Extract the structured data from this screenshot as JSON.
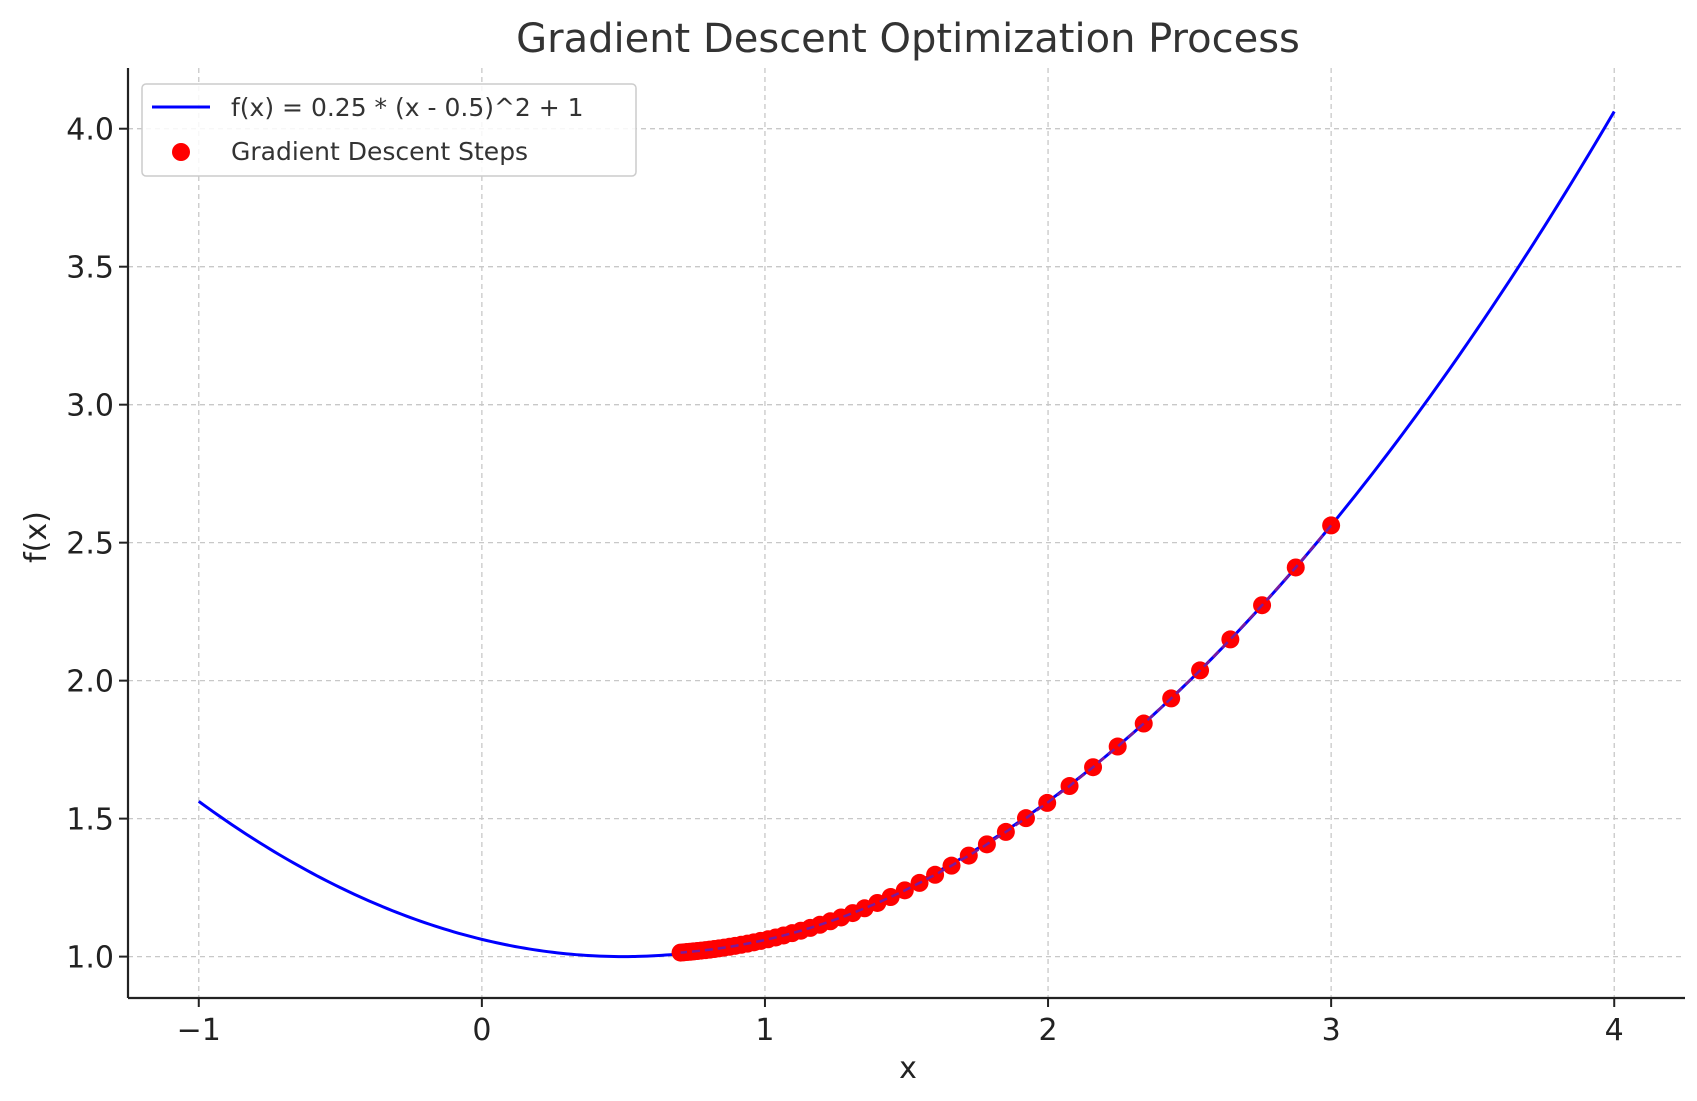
{
  "chart_data": {
    "type": "line",
    "title": "Gradient Descent Optimization Process",
    "xlabel": "x",
    "ylabel": "f(x)",
    "xlim": [
      -1.25,
      4.25
    ],
    "ylim": [
      0.85,
      4.22
    ],
    "x_ticks": [
      -1,
      0,
      1,
      2,
      3,
      4
    ],
    "x_tick_labels": [
      "−1",
      "0",
      "1",
      "2",
      "3",
      "4"
    ],
    "y_ticks": [
      1.0,
      1.5,
      2.0,
      2.5,
      3.0,
      3.5,
      4.0
    ],
    "y_tick_labels": [
      "1.0",
      "1.5",
      "2.0",
      "2.5",
      "3.0",
      "3.5",
      "4.0"
    ],
    "grid": true,
    "legend_position": "top-left",
    "series": [
      {
        "name": "f(x) = 0.25 * (x - 0.5)^2 + 1",
        "kind": "line",
        "color": "#0000ff",
        "function": {
          "a": 0.25,
          "h": 0.5,
          "k": 1
        },
        "x_range": [
          -1,
          4
        ]
      },
      {
        "name": "Gradient Descent Steps",
        "kind": "scatter",
        "color": "#ff0000",
        "x": [
          3.0,
          2.875,
          2.756,
          2.644,
          2.537,
          2.435,
          2.338,
          2.246,
          2.159,
          2.076,
          1.997,
          1.922,
          1.851,
          1.784,
          1.72,
          1.659,
          1.601,
          1.546,
          1.494,
          1.444,
          1.397,
          1.352,
          1.31,
          1.269,
          1.231,
          1.194,
          1.16,
          1.127,
          1.096,
          1.066,
          1.038,
          1.011,
          0.985,
          0.961,
          0.938,
          0.916,
          0.895,
          0.875,
          0.856,
          0.838,
          0.821,
          0.805,
          0.79,
          0.775,
          0.761,
          0.748,
          0.736,
          0.724,
          0.713,
          0.702
        ],
        "y": [
          2.5625,
          2.4102,
          2.2734,
          2.1494,
          2.0371,
          1.9357,
          1.8445,
          1.7613,
          1.6863,
          1.6182,
          1.5569,
          1.5017,
          1.4519,
          1.4068,
          1.366,
          1.3296,
          1.2965,
          1.267,
          1.2401,
          1.2159,
          1.1944,
          1.1751,
          1.1576,
          1.1419,
          1.1279,
          1.1154,
          1.1041,
          1.0939,
          1.0849,
          1.0767,
          1.0694,
          1.0628,
          1.057,
          1.0517,
          1.0469,
          1.0428,
          1.039,
          1.0357,
          1.0326,
          1.03,
          1.0275,
          1.0253,
          1.0234,
          1.0217,
          1.0201,
          1.0188,
          1.0175,
          1.0165,
          1.0155,
          1.0146
        ]
      }
    ]
  }
}
